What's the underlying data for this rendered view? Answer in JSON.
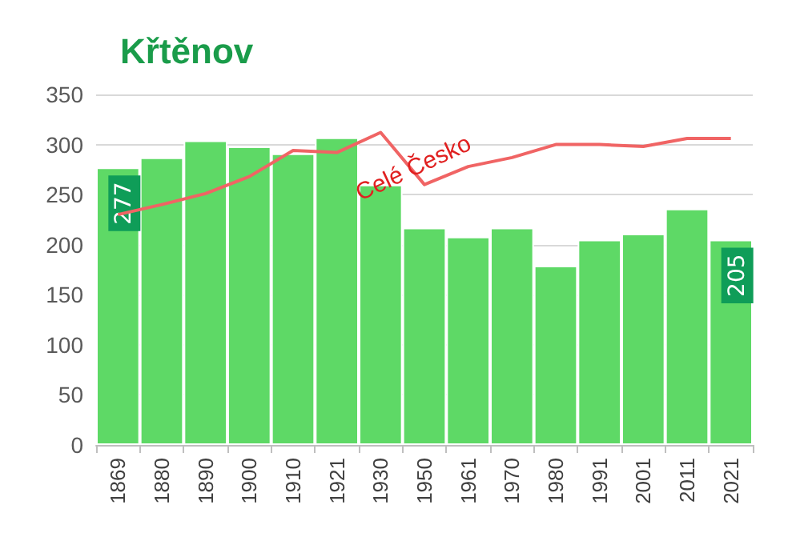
{
  "chart_data": {
    "type": "bar",
    "title": "Křtěnov",
    "categories": [
      "1869",
      "1880",
      "1890",
      "1900",
      "1910",
      "1921",
      "1930",
      "1950",
      "1961",
      "1970",
      "1980",
      "1991",
      "2001",
      "2011",
      "2021"
    ],
    "series": [
      {
        "color": "#5ed966",
        "values": [
          277,
          287,
          304,
          298,
          291,
          307,
          260,
          217,
          208,
          217,
          179,
          205,
          211,
          236,
          205
        ],
        "value_labels": [
          "277",
          null,
          null,
          null,
          null,
          null,
          null,
          null,
          null,
          null,
          null,
          null,
          null,
          null,
          "205"
        ]
      },
      {
        "type": "line",
        "name": "Celé Česko",
        "color": "#f06464",
        "values": [
          230,
          240,
          251,
          268,
          294,
          292,
          312,
          260,
          278,
          287,
          300,
          300,
          298,
          306,
          306
        ]
      }
    ],
    "ylim": [
      0,
      350
    ],
    "yticks": [
      0,
      50,
      100,
      150,
      200,
      250,
      300,
      350
    ],
    "grid": "y",
    "legend": false,
    "marker": "none",
    "line_style": "solid"
  }
}
